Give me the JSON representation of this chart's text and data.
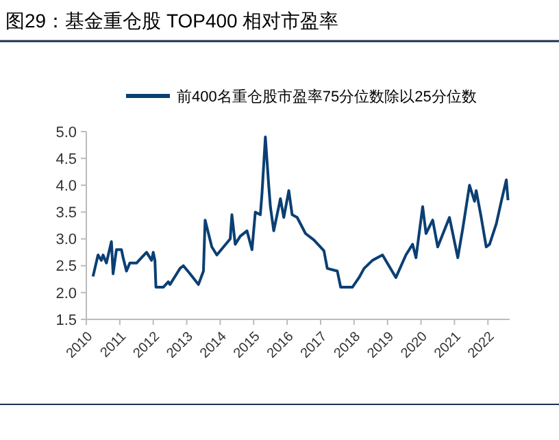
{
  "chart_data": {
    "type": "line",
    "title": "图29：基金重仓股 TOP400 相对市盈率",
    "legend": "top",
    "line_style": "solid",
    "grid": false,
    "xlim": [
      2010,
      2022.65
    ],
    "xticks": [
      2010,
      2011,
      2012,
      2013,
      2014,
      2015,
      2016,
      2017,
      2018,
      2019,
      2020,
      2021,
      2022
    ],
    "ylim": [
      1.5,
      5.0
    ],
    "yticks": [
      {
        "value": 1.5,
        "label": "1.5"
      },
      {
        "value": 2,
        "label": "2.0"
      },
      {
        "value": 2.5,
        "label": "2.5"
      },
      {
        "value": 3,
        "label": "3.0"
      },
      {
        "value": 3.5,
        "label": "3.5"
      },
      {
        "value": 4,
        "label": "4.0"
      },
      {
        "value": 4.5,
        "label": "4.5"
      },
      {
        "value": 5,
        "label": "5.0"
      }
    ],
    "series": [
      {
        "name": "前400名重仓股市盈率75分位数除以25分位数",
        "color": "#0b3f73",
        "x": [
          2010.2,
          2010.35,
          2010.45,
          2010.5,
          2010.6,
          2010.75,
          2010.8,
          2010.9,
          2011.05,
          2011.1,
          2011.2,
          2011.3,
          2011.5,
          2011.65,
          2011.8,
          2011.95,
          2012.0,
          2012.05,
          2012.08,
          2012.3,
          2012.45,
          2012.5,
          2012.8,
          2012.9,
          2013.1,
          2013.35,
          2013.5,
          2013.55,
          2013.75,
          2013.9,
          2014.3,
          2014.35,
          2014.45,
          2014.6,
          2014.8,
          2014.95,
          2015.05,
          2015.2,
          2015.25,
          2015.35,
          2015.45,
          2015.5,
          2015.6,
          2015.8,
          2015.9,
          2016.05,
          2016.15,
          2016.3,
          2016.55,
          2016.8,
          2017.1,
          2017.2,
          2017.5,
          2017.6,
          2017.95,
          2018.15,
          2018.3,
          2018.55,
          2018.85,
          2019.25,
          2019.55,
          2019.75,
          2019.85,
          2020.05,
          2020.15,
          2020.35,
          2020.5,
          2020.85,
          2021.1,
          2021.25,
          2021.45,
          2021.6,
          2021.65,
          2021.8,
          2021.95,
          2022.05,
          2022.25,
          2022.4,
          2022.55,
          2022.6
        ],
        "values": [
          2.3,
          2.7,
          2.6,
          2.7,
          2.55,
          2.95,
          2.35,
          2.8,
          2.8,
          2.65,
          2.4,
          2.55,
          2.55,
          2.65,
          2.75,
          2.6,
          2.75,
          2.6,
          2.1,
          2.1,
          2.2,
          2.15,
          2.45,
          2.5,
          2.35,
          2.15,
          2.4,
          3.35,
          2.85,
          2.7,
          3.0,
          3.45,
          2.9,
          3.05,
          3.15,
          2.8,
          3.5,
          3.45,
          3.85,
          4.9,
          4.0,
          3.6,
          3.15,
          3.75,
          3.4,
          3.9,
          3.45,
          3.4,
          3.1,
          2.98,
          2.78,
          2.45,
          2.4,
          2.1,
          2.1,
          2.28,
          2.45,
          2.6,
          2.7,
          2.28,
          2.7,
          2.9,
          2.65,
          3.6,
          3.1,
          3.35,
          2.85,
          3.4,
          2.65,
          3.2,
          4.0,
          3.7,
          3.9,
          3.4,
          2.85,
          2.9,
          3.28,
          3.7,
          4.1,
          3.72
        ]
      }
    ]
  }
}
